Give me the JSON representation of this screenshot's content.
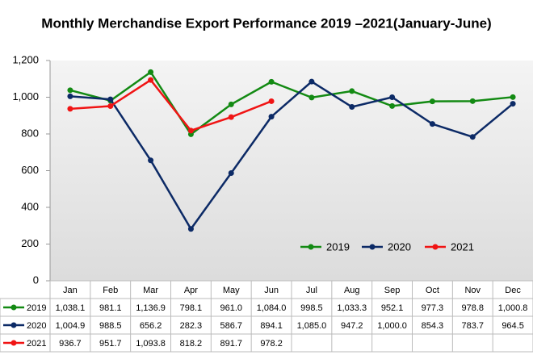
{
  "chart_data": {
    "type": "line",
    "title": "Monthly Merchandise Export Performance 2019 –2021(January-June)",
    "categories": [
      "Jan",
      "Feb",
      "Mar",
      "Apr",
      "May",
      "Jun",
      "Jul",
      "Aug",
      "Sep",
      "Oct",
      "Nov",
      "Dec"
    ],
    "series": [
      {
        "name": "2019",
        "color": "#138a13",
        "values": [
          1038.1,
          981.1,
          1136.9,
          798.1,
          961.0,
          1084.0,
          998.5,
          1033.3,
          952.1,
          977.3,
          978.8,
          1000.8
        ],
        "value_labels": [
          "1,038.1",
          "981.1",
          "1,136.9",
          "798.1",
          "961.0",
          "1,084.0",
          "998.5",
          "1,033.3",
          "952.1",
          "977.3",
          "978.8",
          "1,000.8"
        ]
      },
      {
        "name": "2020",
        "color": "#0c2a66",
        "values": [
          1004.9,
          988.5,
          656.2,
          282.3,
          586.7,
          894.1,
          1085.0,
          947.2,
          1000.0,
          854.3,
          783.7,
          964.5
        ],
        "value_labels": [
          "1,004.9",
          "988.5",
          "656.2",
          "282.3",
          "586.7",
          "894.1",
          "1,085.0",
          "947.2",
          "1,000.0",
          "854.3",
          "783.7",
          "964.5"
        ]
      },
      {
        "name": "2021",
        "color": "#f01414",
        "values": [
          936.7,
          951.7,
          1093.8,
          818.2,
          891.7,
          978.2,
          null,
          null,
          null,
          null,
          null,
          null
        ],
        "value_labels": [
          "936.7",
          "951.7",
          "1,093.8",
          "818.2",
          "891.7",
          "978.2",
          null,
          null,
          null,
          null,
          null,
          null
        ]
      }
    ],
    "ylim": [
      0,
      1200
    ],
    "yticks": [
      0,
      200,
      400,
      600,
      800,
      {
        "value": 1000,
        "label": "1,000"
      },
      {
        "value": 1200,
        "label": "1,200"
      }
    ],
    "grid": false,
    "legend": "lower right"
  }
}
